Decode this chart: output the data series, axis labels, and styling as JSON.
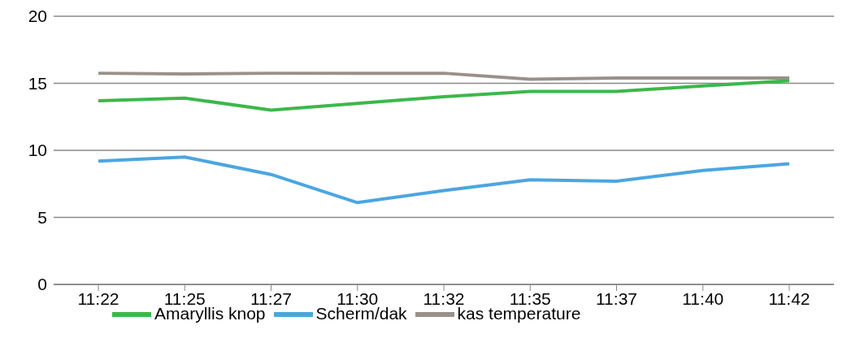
{
  "chart_data": {
    "type": "line",
    "categories": [
      "11:22",
      "11:25",
      "11:27",
      "11:30",
      "11:32",
      "11:35",
      "11:37",
      "11:40",
      "11:42"
    ],
    "series": [
      {
        "name": "Amaryllis knop",
        "color": "#3cb84a",
        "values": [
          13.7,
          13.9,
          13.0,
          13.5,
          14.0,
          14.4,
          14.4,
          14.8,
          15.2
        ]
      },
      {
        "name": "Scherm/dak",
        "color": "#4ba6e0",
        "values": [
          9.2,
          9.5,
          8.2,
          6.1,
          7.0,
          7.8,
          7.7,
          8.5,
          9.0
        ]
      },
      {
        "name": "kas temperature",
        "color": "#999189",
        "values": [
          15.75,
          15.7,
          15.75,
          15.75,
          15.75,
          15.3,
          15.4,
          15.4,
          15.4
        ]
      }
    ],
    "ylim": [
      0,
      20
    ],
    "yticks": [
      0,
      5,
      10,
      15,
      20
    ],
    "grid": "y",
    "legend": "bottom",
    "marker": "none",
    "line_style": "solid"
  }
}
